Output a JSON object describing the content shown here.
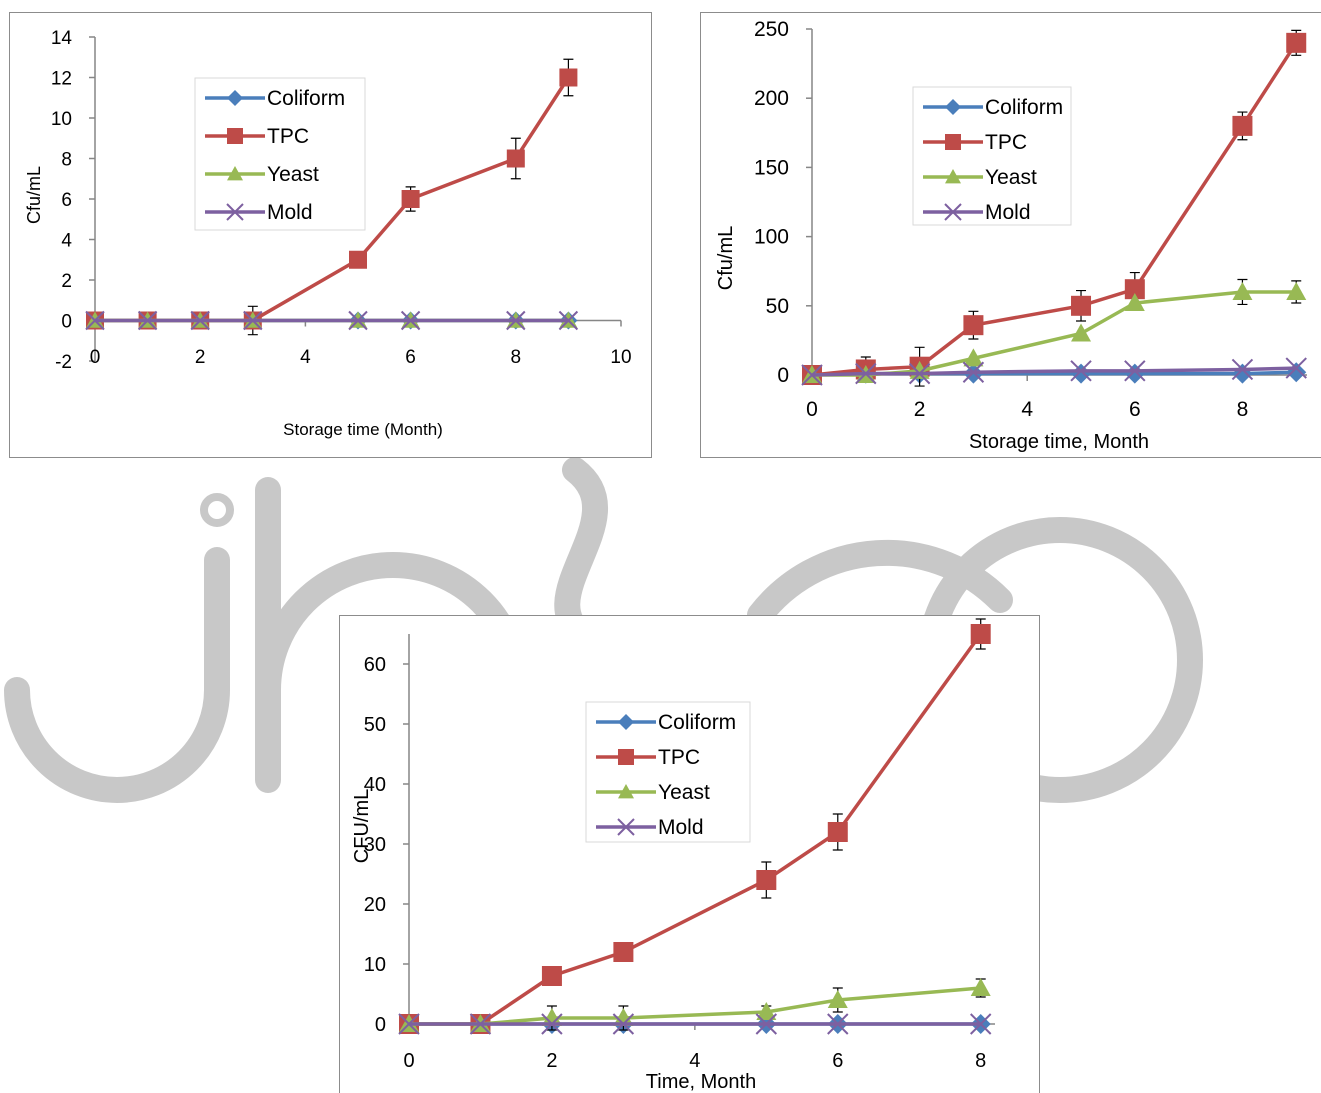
{
  "watermark": {
    "text": "jbpo",
    "color": "#c8c8c8"
  },
  "colors": {
    "Coliform": "#4a7ebb",
    "TPC": "#be4b48",
    "Yeast": "#98b954",
    "Mold": "#7d60a0",
    "errorbar": "#000000"
  },
  "chart_data": [
    {
      "type": "line",
      "ylabel": "Cfu/mL",
      "xlabel": "Storage time (Month)",
      "xlim": [
        0,
        10
      ],
      "ylim": [
        -2,
        14
      ],
      "xticks": [
        0,
        2,
        4,
        6,
        8,
        10
      ],
      "yticks": [
        -2,
        0,
        2,
        4,
        6,
        8,
        10,
        12,
        14
      ],
      "legend_position": "upper-left-center",
      "series": [
        {
          "name": "Coliform",
          "marker": "diamond",
          "x": [
            0,
            1,
            2,
            3,
            5,
            6,
            8,
            9
          ],
          "y": [
            0,
            0,
            0,
            0,
            0,
            0,
            0,
            0
          ]
        },
        {
          "name": "TPC",
          "marker": "square",
          "x": [
            0,
            1,
            2,
            3,
            5,
            6,
            8,
            9
          ],
          "y": [
            0,
            0,
            0,
            0,
            3,
            6,
            8,
            12
          ],
          "err": [
            0,
            0,
            0,
            0.7,
            0,
            0.6,
            1,
            0.9
          ]
        },
        {
          "name": "Yeast",
          "marker": "triangle",
          "x": [
            0,
            1,
            2,
            3,
            5,
            6,
            8,
            9
          ],
          "y": [
            0,
            0,
            0,
            0,
            0,
            0,
            0,
            0
          ]
        },
        {
          "name": "Mold",
          "marker": "x",
          "x": [
            0,
            1,
            2,
            3,
            5,
            6,
            8,
            9
          ],
          "y": [
            0,
            0,
            0,
            0,
            0,
            0,
            0,
            0
          ]
        }
      ]
    },
    {
      "type": "line",
      "ylabel": "Cfu/mL",
      "xlabel": "Storage time, Month",
      "xlim": [
        0,
        9.2
      ],
      "ylim": [
        0,
        250
      ],
      "xticks": [
        0,
        2,
        4,
        6,
        8
      ],
      "yticks": [
        0,
        50,
        100,
        150,
        200,
        250
      ],
      "legend_position": "upper-left-center",
      "series": [
        {
          "name": "Coliform",
          "marker": "diamond",
          "x": [
            0,
            1,
            2,
            3,
            5,
            6,
            8,
            9
          ],
          "y": [
            0,
            1,
            1,
            1,
            1,
            1,
            1,
            2
          ]
        },
        {
          "name": "TPC",
          "marker": "square",
          "x": [
            0,
            1,
            2,
            3,
            5,
            6,
            8,
            9
          ],
          "y": [
            0,
            4,
            6,
            36,
            50,
            62,
            180,
            240
          ],
          "err": [
            0,
            9,
            14,
            10,
            11,
            12,
            10,
            9
          ]
        },
        {
          "name": "Yeast",
          "marker": "triangle",
          "x": [
            0,
            1,
            2,
            3,
            5,
            6,
            8,
            9
          ],
          "y": [
            0,
            0,
            3,
            12,
            30,
            52,
            60,
            60
          ],
          "err": [
            0,
            0,
            0,
            0,
            0,
            0,
            9,
            8
          ]
        },
        {
          "name": "Mold",
          "marker": "x",
          "x": [
            0,
            1,
            2,
            3,
            5,
            6,
            8,
            9
          ],
          "y": [
            0,
            1,
            1,
            2,
            3,
            3,
            4,
            5
          ]
        }
      ]
    },
    {
      "type": "line",
      "ylabel": "CFU/mL",
      "xlabel": "Time, Month",
      "xlim": [
        0,
        8.2
      ],
      "ylim": [
        0,
        65
      ],
      "xticks": [
        0,
        2,
        4,
        6,
        8
      ],
      "yticks": [
        0,
        10,
        20,
        30,
        40,
        50,
        60
      ],
      "legend_position": "upper-left-center",
      "series": [
        {
          "name": "Coliform",
          "marker": "diamond",
          "x": [
            0,
            1,
            2,
            3,
            5,
            6,
            8
          ],
          "y": [
            0,
            0,
            0,
            0,
            0,
            0,
            0
          ]
        },
        {
          "name": "TPC",
          "marker": "square",
          "x": [
            0,
            1,
            2,
            3,
            5,
            6,
            8
          ],
          "y": [
            0,
            0,
            8,
            12,
            24,
            32,
            65
          ],
          "err": [
            0,
            1.5,
            0.8,
            1.5,
            3,
            3,
            2.5
          ]
        },
        {
          "name": "Yeast",
          "marker": "triangle",
          "x": [
            0,
            1,
            2,
            3,
            5,
            6,
            8
          ],
          "y": [
            0,
            0,
            1,
            1,
            2,
            4,
            6
          ],
          "err": [
            0,
            0,
            2,
            2,
            1,
            2,
            1.5
          ]
        },
        {
          "name": "Mold",
          "marker": "x",
          "x": [
            0,
            1,
            2,
            3,
            5,
            6,
            8
          ],
          "y": [
            0,
            0,
            0,
            0,
            0,
            0,
            0
          ]
        }
      ]
    }
  ]
}
